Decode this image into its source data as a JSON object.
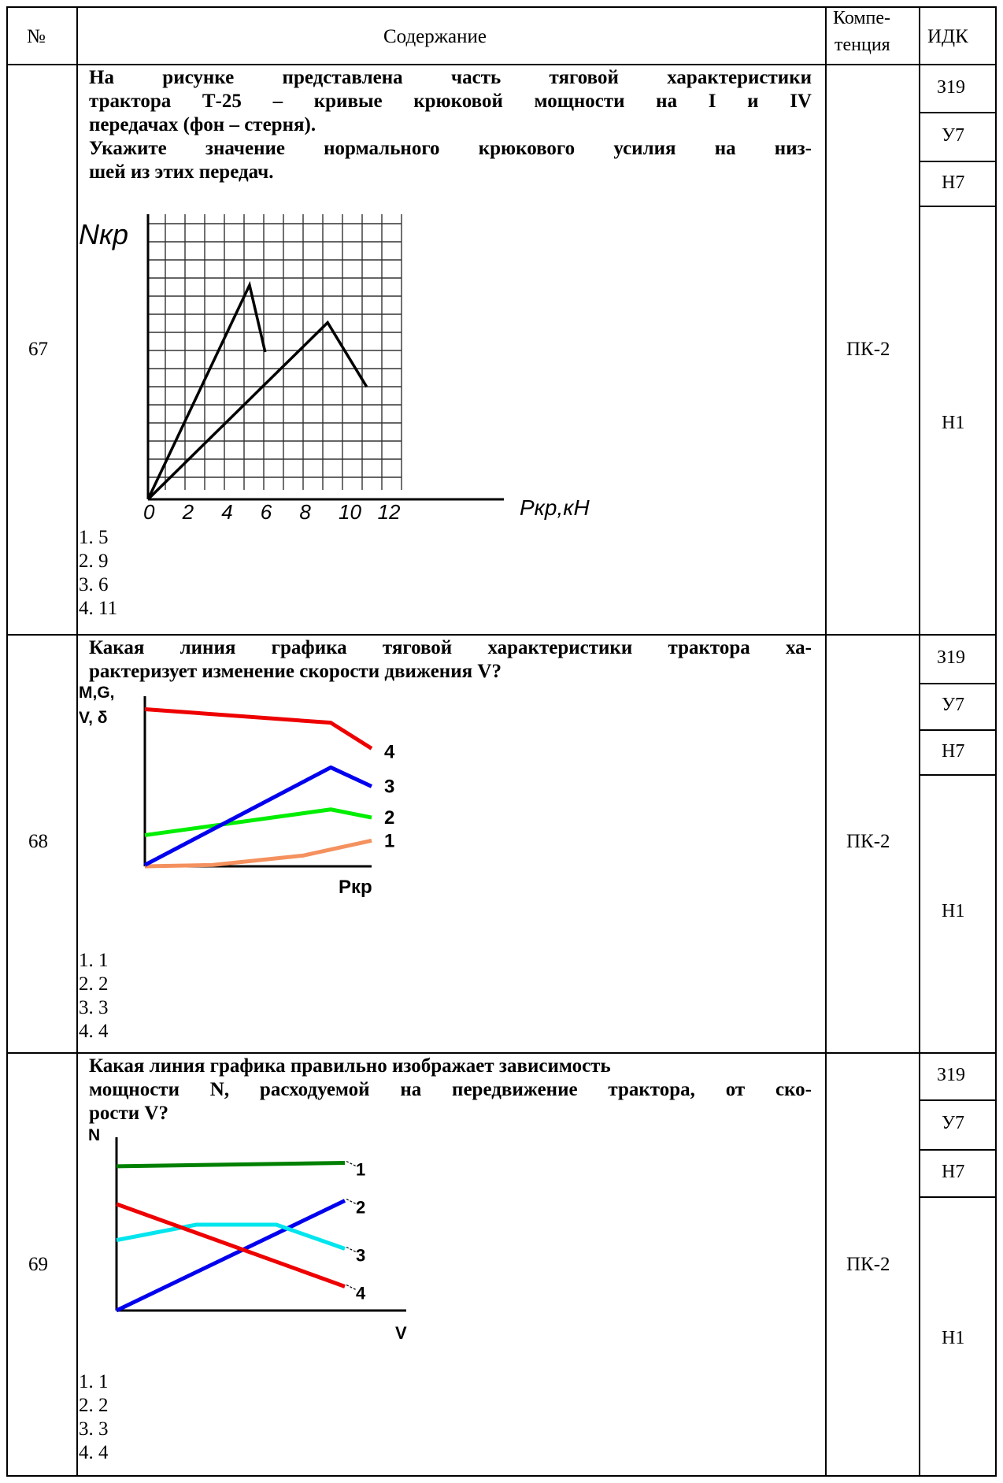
{
  "header": {
    "num": "№",
    "content": "Содержание",
    "competence_line1": "Компе-",
    "competence_line2": "тенция",
    "idk": "ИДК"
  },
  "rows": [
    {
      "num": "67",
      "question_lines": [
        "На рисунке представлена часть тяговой характеристики",
        "трактора Т-25 – кривые крюковой мощности на I и IV",
        "передачах (фон – стерня).",
        "Укажите значение нормального крюкового усилия на низ-",
        "шей из этих передач."
      ],
      "options": [
        "1. 5",
        "2. 9",
        "3. 6",
        "4. 11"
      ],
      "competence": "ПК-2",
      "idk": [
        "З19",
        "У7",
        "Н7",
        "Н1"
      ]
    },
    {
      "num": "68",
      "question_lines": [
        "Какая линия графика тяговой характеристики трактора ха-",
        "рактеризует изменение скорости движения V?"
      ],
      "options": [
        "1. 1",
        "2. 2",
        "3. 3",
        "4. 4"
      ],
      "competence": "ПК-2",
      "idk": [
        "З19",
        "У7",
        "Н7",
        "Н1"
      ]
    },
    {
      "num": "69",
      "question_lines": [
        "Какая линия графика правильно изображает зависимость",
        "мощности N, расходуемой на передвижение трактора, от ско-",
        "рости V?"
      ],
      "options": [
        "1. 1",
        "2. 2",
        "3. 3",
        "4. 4"
      ],
      "competence": "ПК-2",
      "idk": [
        "З19",
        "У7",
        "Н7",
        "Н1"
      ]
    }
  ],
  "chart_data": [
    {
      "type": "line",
      "ylabel": "Nкр",
      "xlabel": "Pкр,кН",
      "x_ticks": [
        "0",
        "2",
        "4",
        "6",
        "8",
        "10",
        "12"
      ],
      "xlim": [
        0,
        14
      ],
      "grid": true,
      "series": [
        {
          "x": [
            0,
            5.2,
            6.0
          ],
          "y": [
            0,
            8.0,
            5.5
          ]
        },
        {
          "x": [
            0,
            9.2,
            11.2
          ],
          "y": [
            0,
            6.6,
            4.2
          ]
        }
      ]
    },
    {
      "type": "line",
      "ylabel_line1": "M,G,",
      "ylabel_line2": "V, δ",
      "xlabel": "Pкр",
      "grid": false,
      "series": [
        {
          "label": "1",
          "color": "#f4915e",
          "x": [
            0,
            3,
            7,
            10
          ],
          "y": [
            0,
            0.1,
            0.8,
            1.9
          ]
        },
        {
          "label": "2",
          "color": "#00ee00",
          "x": [
            0,
            8.2,
            10
          ],
          "y": [
            2.3,
            4.2,
            3.6
          ]
        },
        {
          "label": "3",
          "color": "#0000ee",
          "x": [
            0,
            8.2,
            10
          ],
          "y": [
            0.1,
            7.3,
            5.9
          ]
        },
        {
          "label": "4",
          "color": "#ee0000",
          "x": [
            0,
            8.2,
            10
          ],
          "y": [
            11.6,
            10.6,
            8.7
          ]
        }
      ]
    },
    {
      "type": "line",
      "ylabel": "N",
      "xlabel": "V",
      "grid": false,
      "series": [
        {
          "label": "1",
          "color": "#008000",
          "x": [
            0,
            10
          ],
          "y": [
            8.4,
            8.6
          ]
        },
        {
          "label": "2",
          "color": "#0000ee",
          "x": [
            0,
            10
          ],
          "y": [
            0,
            6.4
          ]
        },
        {
          "label": "3",
          "color": "#00e5ee",
          "x": [
            0,
            3.5,
            7,
            10
          ],
          "y": [
            4.1,
            5.0,
            5.0,
            3.6
          ]
        },
        {
          "label": "4",
          "color": "#ee0000",
          "x": [
            0,
            10
          ],
          "y": [
            6.2,
            1.4
          ]
        }
      ]
    }
  ]
}
